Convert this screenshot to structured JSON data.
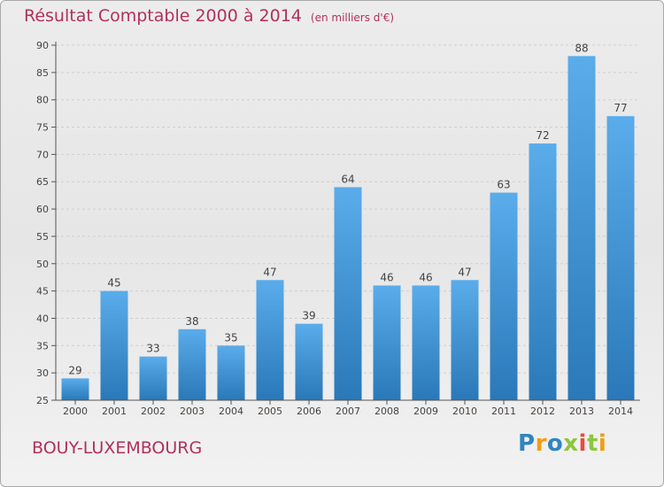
{
  "header": {
    "title": "Résultat Comptable 2000 à 2014",
    "subtitle": "(en milliers d'€)"
  },
  "footer": {
    "town": "BOUY-LUXEMBOURG",
    "logo_text": "Proxiti"
  },
  "colors": {
    "bar_light": "#5aacea",
    "bar_dark": "#2a78b8",
    "title": "#b1305d",
    "logo_letters": [
      "#2e86c1",
      "#f39c12",
      "#2e86c1",
      "#8dc63f",
      "#e74c3c",
      "#8dc63f",
      "#f39c12"
    ]
  },
  "chart_data": {
    "type": "bar",
    "title": "Résultat Comptable 2000 à 2014",
    "subtitle": "(en milliers d'€)",
    "xlabel": "",
    "ylabel": "",
    "categories": [
      "2000",
      "2001",
      "2002",
      "2003",
      "2004",
      "2005",
      "2006",
      "2007",
      "2008",
      "2009",
      "2010",
      "2011",
      "2012",
      "2013",
      "2014"
    ],
    "values": [
      29,
      45,
      33,
      38,
      35,
      47,
      39,
      64,
      46,
      46,
      47,
      63,
      72,
      88,
      77
    ],
    "ylim": [
      25,
      90
    ],
    "yticks": [
      25,
      30,
      35,
      40,
      45,
      50,
      55,
      60,
      65,
      70,
      75,
      80,
      85,
      90
    ],
    "grid": true,
    "legend": "none"
  }
}
